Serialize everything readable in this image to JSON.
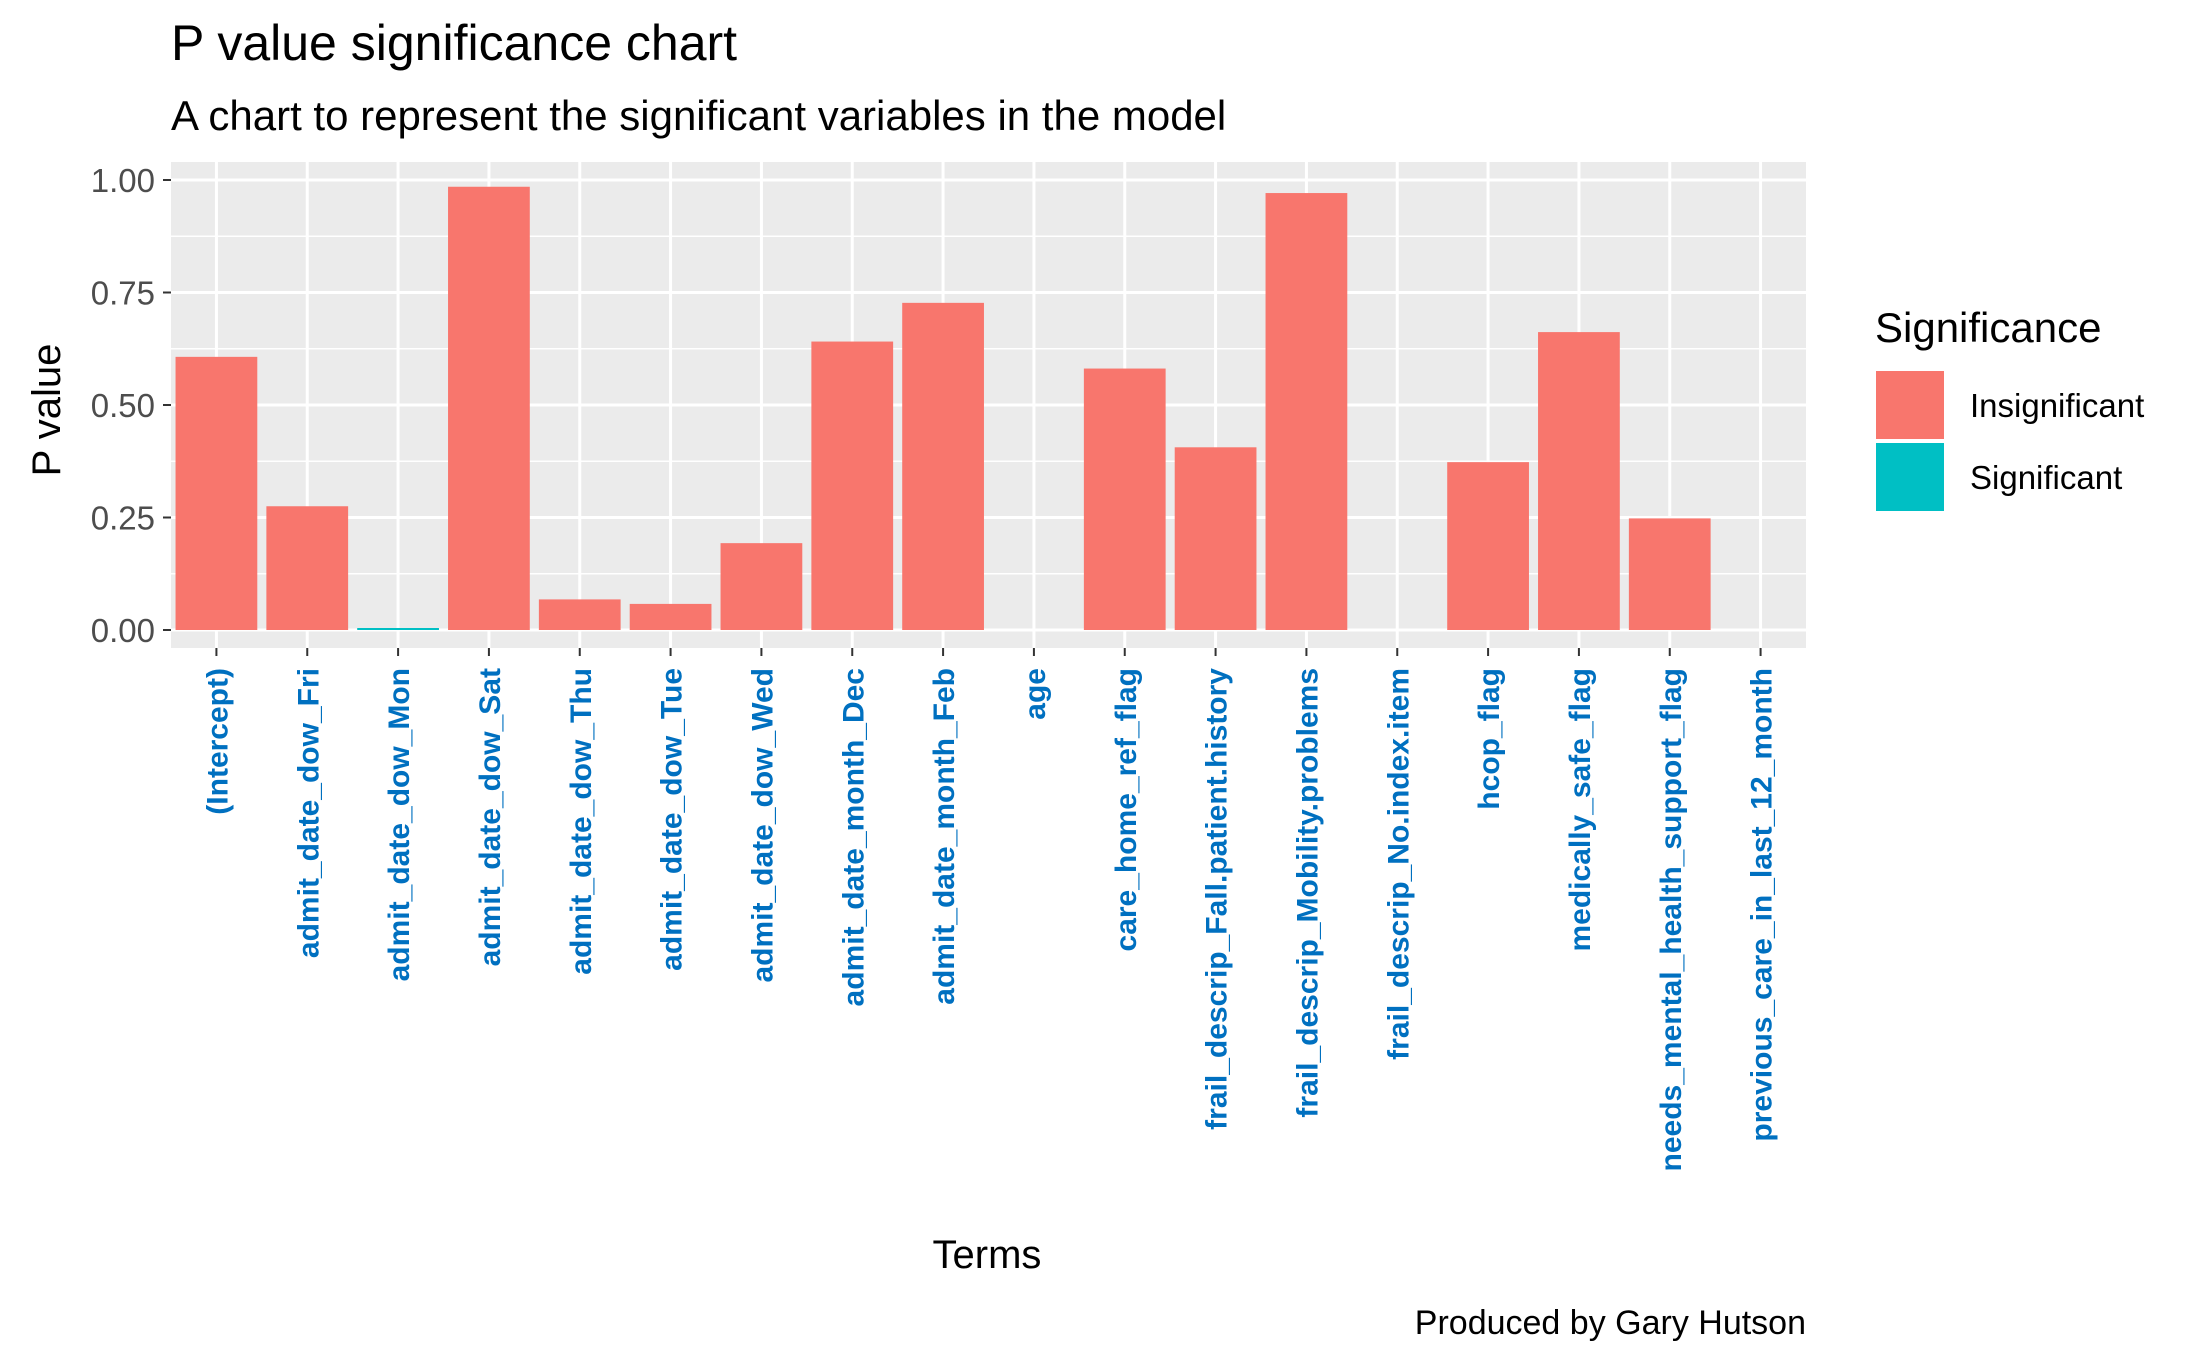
{
  "chart_data": {
    "type": "bar",
    "title": "P value significance chart",
    "subtitle": "A chart to represent the significant variables in the model",
    "caption": "Produced by Gary Hutson",
    "xlabel": "Terms",
    "ylabel": "P value",
    "ylim": [
      -0.04,
      1.04
    ],
    "yticks": [
      0.0,
      0.25,
      0.5,
      0.75,
      1.0
    ],
    "ytick_labels": [
      "0.00",
      "0.25",
      "0.50",
      "0.75",
      "1.00"
    ],
    "grid": true,
    "legend": {
      "title": "Significance",
      "placement": "right",
      "entries": [
        {
          "label": "Insignificant",
          "color": "#F8766D"
        },
        {
          "label": "Significant",
          "color": "#00BFC4"
        }
      ]
    },
    "colors": {
      "Insignificant": "#F8766D",
      "Significant": "#00BFC4",
      "panel_background": "#EBEBEB",
      "gridline": "#FFFFFF",
      "x_tick_label": "#0070C0"
    },
    "categories": [
      "(Intercept)",
      "admit_date_dow_Fri",
      "admit_date_dow_Mon",
      "admit_date_dow_Sat",
      "admit_date_dow_Thu",
      "admit_date_dow_Tue",
      "admit_date_dow_Wed",
      "admit_date_month_Dec",
      "admit_date_month_Feb",
      "age",
      "care_home_ref_flag",
      "frail_descrip_Fall.patient.history",
      "frail_descrip_Mobility.problems",
      "frail_descrip_No.index.item",
      "hcop_flag",
      "medically_safe_flag",
      "needs_mental_health_support_flag",
      "previous_care_in_last_12_month"
    ],
    "values": [
      0.607,
      0.275,
      0.003,
      0.985,
      0.068,
      0.058,
      0.193,
      0.641,
      0.727,
      0.0,
      0.581,
      0.406,
      0.971,
      0.0,
      0.373,
      0.662,
      0.248,
      0.0
    ],
    "significance": [
      "Insignificant",
      "Insignificant",
      "Significant",
      "Insignificant",
      "Insignificant",
      "Insignificant",
      "Insignificant",
      "Insignificant",
      "Insignificant",
      "Significant",
      "Insignificant",
      "Insignificant",
      "Insignificant",
      "Significant",
      "Insignificant",
      "Insignificant",
      "Insignificant",
      "Significant"
    ]
  }
}
